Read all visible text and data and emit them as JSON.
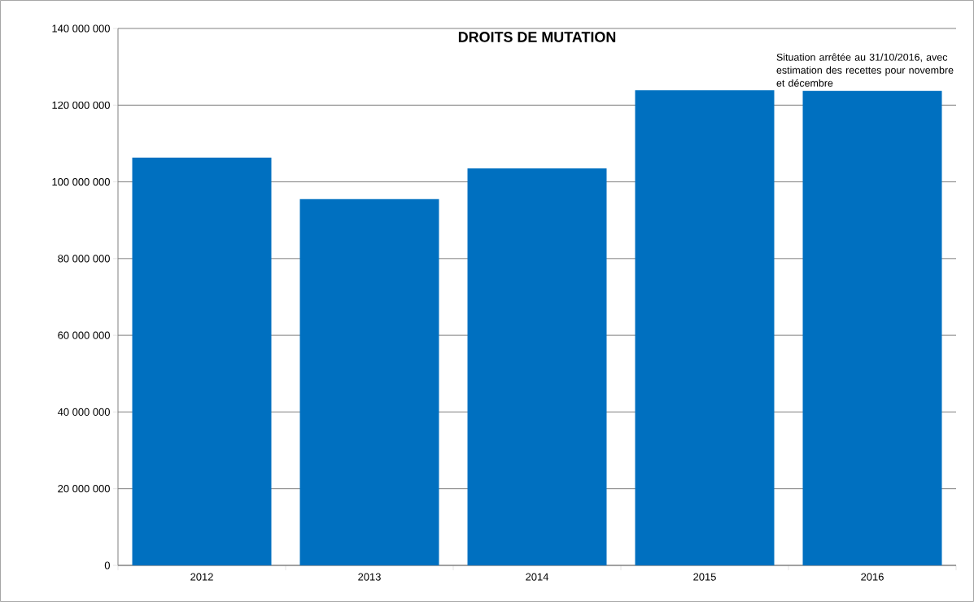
{
  "chart_data": {
    "type": "bar",
    "title": "DROITS DE MUTATION",
    "categories": [
      "2012",
      "2013",
      "2014",
      "2015",
      "2016"
    ],
    "values": [
      106300000,
      95500000,
      103500000,
      123900000,
      123700000
    ],
    "color": "#0070c0",
    "ylim": [
      0,
      140000000
    ],
    "yticks": [
      {
        "value": 0,
        "label": "0"
      },
      {
        "value": 20000000,
        "label": "20 000 000"
      },
      {
        "value": 40000000,
        "label": "40 000 000"
      },
      {
        "value": 60000000,
        "label": "60 000 000"
      },
      {
        "value": 80000000,
        "label": "80 000 000"
      },
      {
        "value": 100000000,
        "label": "100 000 000"
      },
      {
        "value": 120000000,
        "label": "120 000 000"
      },
      {
        "value": 140000000,
        "label": "140 000 000"
      }
    ],
    "grid": "y",
    "annotations": [
      {
        "text": "Situation arrêtée  au 31/10/2016, avec estimation des recettes pour novembre et décembre",
        "x": "2016",
        "y": 123700000
      }
    ]
  }
}
